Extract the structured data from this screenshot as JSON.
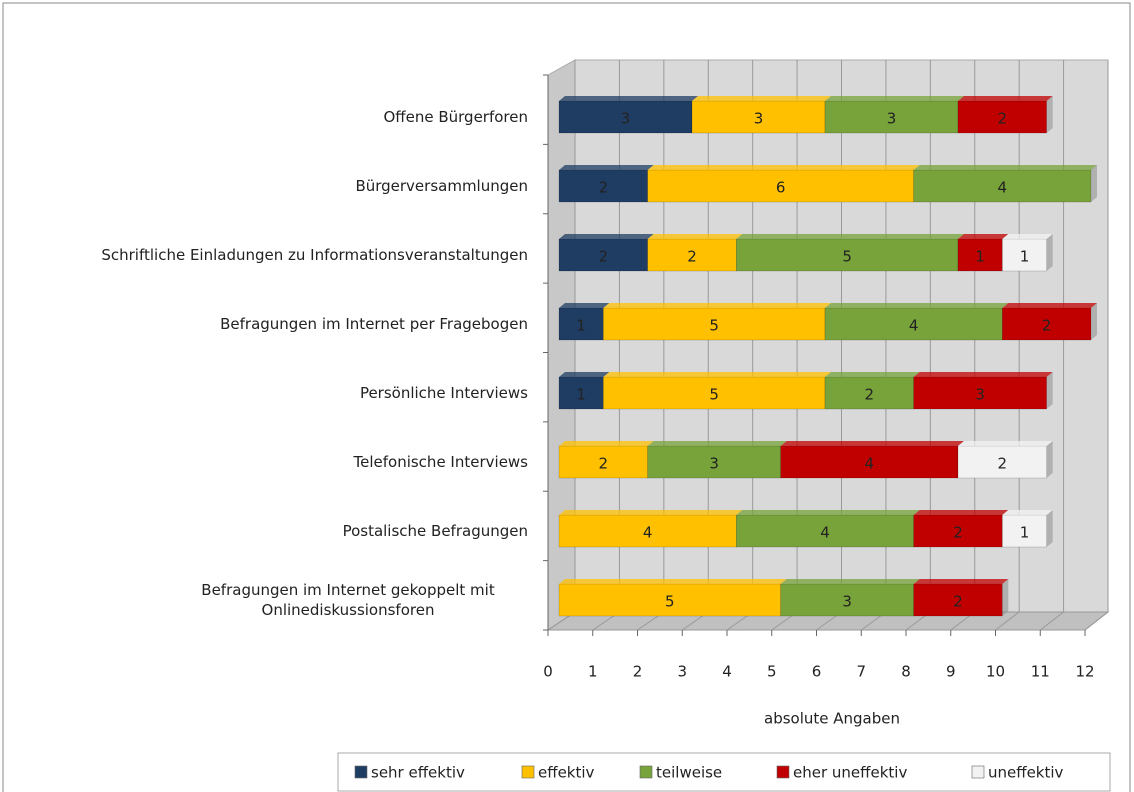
{
  "chart_data": {
    "type": "bar",
    "orientation": "horizontal",
    "stacked": true,
    "categories": [
      "Offene Bürgerforen",
      "Bürgerversammlungen",
      "Schriftliche Einladungen zu Informationsveranstaltungen",
      "Befragungen im Internet per Fragebogen",
      "Persönliche Interviews",
      "Telefonische Interviews",
      "Postalische Befragungen",
      "Befragungen im Internet gekoppelt mit Onlinediskussionsforen"
    ],
    "series": [
      {
        "name": "sehr effektiv",
        "color": "#1f3d63",
        "values": [
          3,
          2,
          2,
          1,
          1,
          null,
          null,
          null
        ]
      },
      {
        "name": "effektiv",
        "color": "#ffc000",
        "values": [
          3,
          6,
          2,
          5,
          5,
          2,
          4,
          5
        ]
      },
      {
        "name": "teilweise",
        "color": "#77a33a",
        "values": [
          3,
          4,
          5,
          4,
          2,
          3,
          4,
          3
        ]
      },
      {
        "name": "eher uneffektiv",
        "color": "#c00000",
        "values": [
          2,
          null,
          1,
          2,
          3,
          4,
          2,
          2
        ]
      },
      {
        "name": "uneffektiv",
        "color": "#f2f2f2",
        "values": [
          null,
          null,
          1,
          null,
          null,
          2,
          1,
          null
        ]
      }
    ],
    "xlabel": "absolute Angaben",
    "xlim": [
      0,
      12
    ],
    "xticks": [
      0,
      1,
      2,
      3,
      4,
      5,
      6,
      7,
      8,
      9,
      10,
      11,
      12
    ],
    "grid": true,
    "legend": "bottom"
  }
}
